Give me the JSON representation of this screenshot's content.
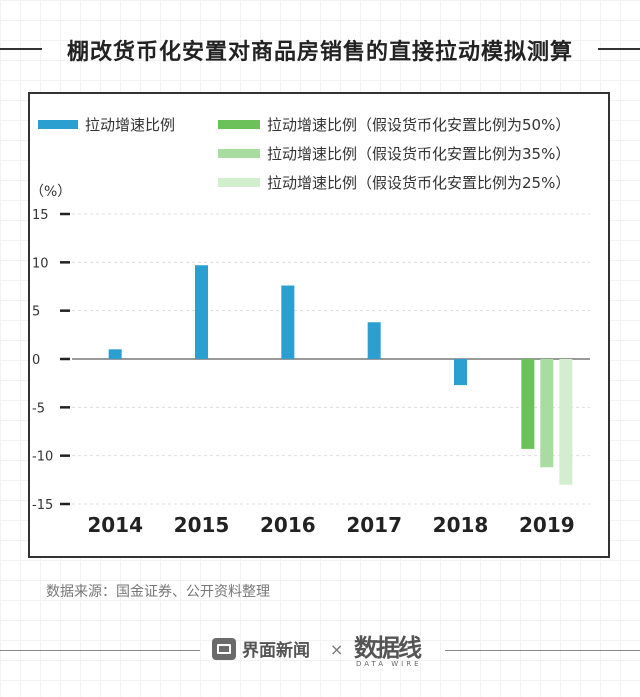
{
  "title": "棚改货币化安置对商品房销售的直接拉动模拟测算",
  "source": "数据来源：国金证券、公开资料整理",
  "footer": {
    "brand": "界面新闻",
    "times": "×",
    "partner": "数据线",
    "partner_sub": "DATA WIRE"
  },
  "chart_data": {
    "type": "bar",
    "unit_label": "（%）",
    "categories": [
      "2014",
      "2015",
      "2016",
      "2017",
      "2018",
      "2019"
    ],
    "yticks": [
      15,
      10,
      5,
      0,
      -5,
      -10,
      -15
    ],
    "ylim": [
      -15,
      15
    ],
    "grid": true,
    "series": [
      {
        "name": "拉动增速比例",
        "color": "#2a9fd0",
        "values": [
          1.0,
          9.7,
          7.6,
          3.8,
          -2.7,
          null
        ]
      },
      {
        "name": "拉动增速比例（假设货币化安置比例为50%）",
        "color": "#6cc15a",
        "values": [
          null,
          null,
          null,
          null,
          null,
          -9.3
        ]
      },
      {
        "name": "拉动增速比例（假设货币化安置比例为35%）",
        "color": "#a8dca0",
        "values": [
          null,
          null,
          null,
          null,
          null,
          -11.2
        ]
      },
      {
        "name": "拉动增速比例（假设货币化安置比例为25%）",
        "color": "#d3eecf",
        "values": [
          null,
          null,
          null,
          null,
          null,
          -13.0
        ]
      }
    ]
  }
}
